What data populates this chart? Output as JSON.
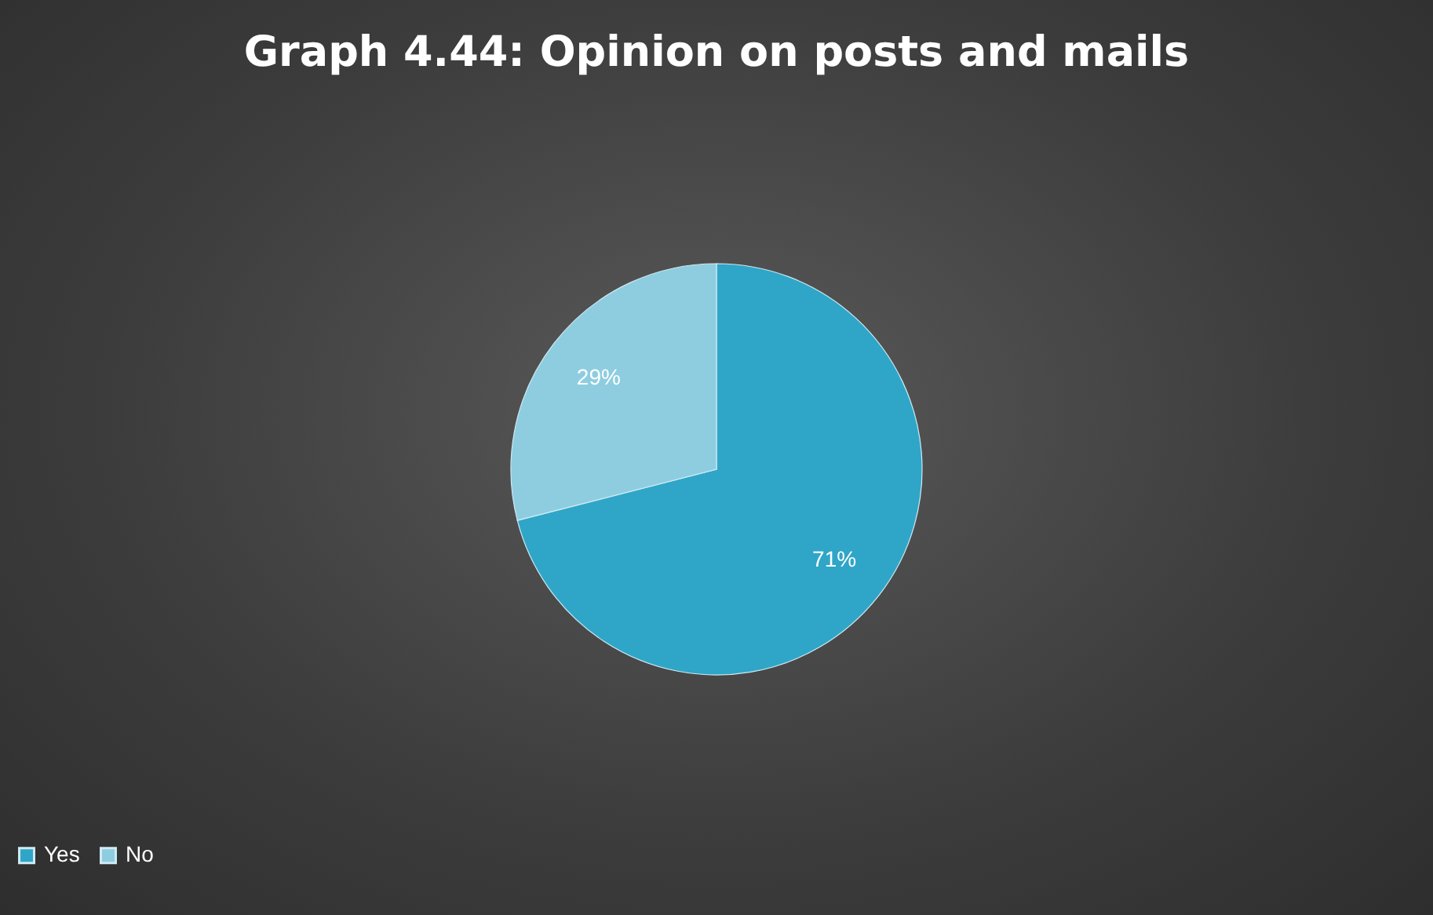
{
  "chart_data": {
    "type": "pie",
    "title": "Graph 4.44: Opinion on posts and mails",
    "categories": [
      "Yes",
      "No"
    ],
    "values": [
      71,
      29
    ],
    "value_labels": [
      "71%",
      "29%"
    ],
    "colors": [
      "#2fa6c8",
      "#8ecde0"
    ],
    "legend": "bottom"
  }
}
